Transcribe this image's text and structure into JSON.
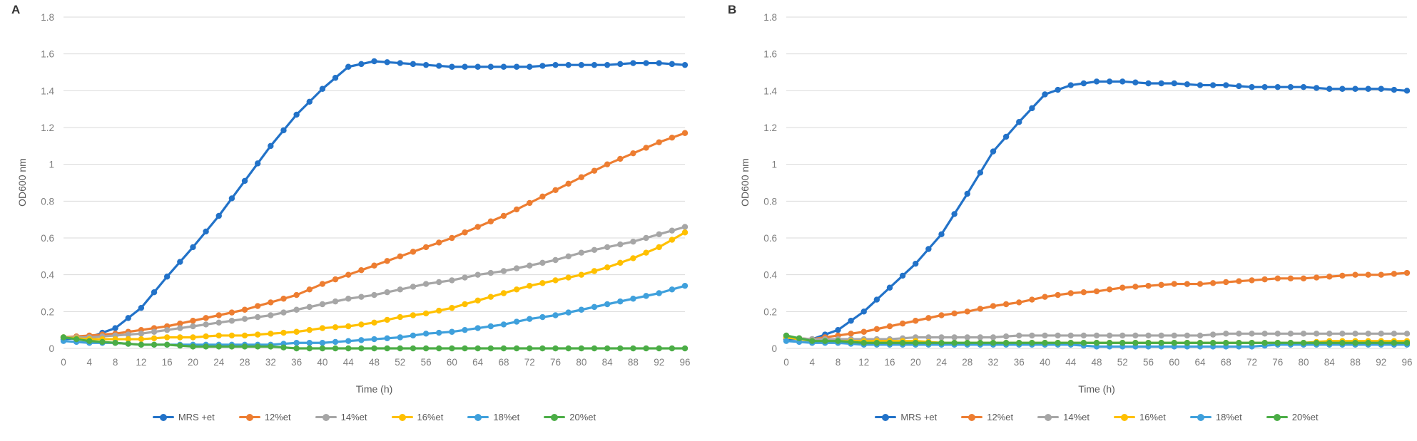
{
  "figure_bg": "#ffffff",
  "grid_color": "#d9d9d9",
  "tick_color": "#7f7f7f",
  "chart_data": [
    {
      "panel_label": "A",
      "type": "line",
      "title": "",
      "xlabel": "Time (h)",
      "ylabel": "OD600 nm",
      "ylim": [
        0,
        1.8
      ],
      "ytick_step": 0.2,
      "ytick_labels": [
        "0",
        "0.2",
        "0.4",
        "0.6",
        "0.8",
        "1",
        "1.2",
        "1.4",
        "1.6",
        "1.8"
      ],
      "grid": "horizontal",
      "legend_position": "bottom",
      "x": [
        0,
        4,
        8,
        12,
        16,
        20,
        24,
        28,
        32,
        36,
        40,
        44,
        48,
        52,
        56,
        60,
        64,
        68,
        72,
        76,
        80,
        84,
        88,
        92,
        96
      ],
      "series": [
        {
          "name": "MRS +et",
          "color": "#2272c8",
          "values": [
            0.05,
            0.06,
            0.11,
            0.22,
            0.39,
            0.55,
            0.72,
            0.91,
            1.1,
            1.27,
            1.41,
            1.53,
            1.56,
            1.55,
            1.54,
            1.53,
            1.53,
            1.53,
            1.53,
            1.54,
            1.54,
            1.54,
            1.55,
            1.55,
            1.54
          ]
        },
        {
          "name": "12%et",
          "color": "#ed7d31",
          "values": [
            0.06,
            0.07,
            0.08,
            0.1,
            0.12,
            0.15,
            0.18,
            0.21,
            0.25,
            0.29,
            0.35,
            0.4,
            0.45,
            0.5,
            0.55,
            0.6,
            0.66,
            0.72,
            0.79,
            0.86,
            0.93,
            1.0,
            1.06,
            1.12,
            1.17
          ]
        },
        {
          "name": "14%et",
          "color": "#a6a6a6",
          "values": [
            0.06,
            0.06,
            0.07,
            0.08,
            0.1,
            0.12,
            0.14,
            0.16,
            0.18,
            0.21,
            0.24,
            0.27,
            0.29,
            0.32,
            0.35,
            0.37,
            0.4,
            0.42,
            0.45,
            0.48,
            0.52,
            0.55,
            0.58,
            0.62,
            0.66
          ]
        },
        {
          "name": "16%et",
          "color": "#ffc000",
          "values": [
            0.06,
            0.05,
            0.05,
            0.05,
            0.06,
            0.06,
            0.07,
            0.07,
            0.08,
            0.09,
            0.11,
            0.12,
            0.14,
            0.17,
            0.19,
            0.22,
            0.26,
            0.3,
            0.34,
            0.37,
            0.4,
            0.44,
            0.49,
            0.55,
            0.63
          ]
        },
        {
          "name": "18%et",
          "color": "#3fa0dc",
          "values": [
            0.04,
            0.03,
            0.03,
            0.02,
            0.02,
            0.02,
            0.02,
            0.02,
            0.02,
            0.03,
            0.03,
            0.04,
            0.05,
            0.06,
            0.08,
            0.09,
            0.11,
            0.13,
            0.16,
            0.18,
            0.21,
            0.24,
            0.27,
            0.3,
            0.34
          ]
        },
        {
          "name": "20%et",
          "color": "#4bad46",
          "values": [
            0.06,
            0.04,
            0.03,
            0.02,
            0.02,
            0.01,
            0.01,
            0.01,
            0.01,
            0.0,
            0.0,
            0.0,
            0.0,
            0.0,
            0.0,
            0.0,
            0.0,
            0.0,
            0.0,
            0.0,
            0.0,
            0.0,
            0.0,
            0.0,
            0.0
          ]
        }
      ]
    },
    {
      "panel_label": "B",
      "type": "line",
      "title": "",
      "xlabel": "Time (h)",
      "ylabel": "OD600 nm",
      "ylim": [
        0,
        1.8
      ],
      "ytick_step": 0.2,
      "ytick_labels": [
        "0",
        "0.2",
        "0.4",
        "0.6",
        "0.8",
        "1",
        "1.2",
        "1.4",
        "1.6",
        "1.8"
      ],
      "grid": "horizontal",
      "legend_position": "bottom",
      "x": [
        0,
        4,
        8,
        12,
        16,
        20,
        24,
        28,
        32,
        36,
        40,
        44,
        48,
        52,
        56,
        60,
        64,
        68,
        72,
        76,
        80,
        84,
        88,
        92,
        96
      ],
      "series": [
        {
          "name": "MRS +et",
          "color": "#2272c8",
          "values": [
            0.05,
            0.05,
            0.1,
            0.2,
            0.33,
            0.46,
            0.62,
            0.84,
            1.07,
            1.23,
            1.38,
            1.43,
            1.45,
            1.45,
            1.44,
            1.44,
            1.43,
            1.43,
            1.42,
            1.42,
            1.42,
            1.41,
            1.41,
            1.41,
            1.4
          ]
        },
        {
          "name": "12%et",
          "color": "#ed7d31",
          "values": [
            0.06,
            0.05,
            0.07,
            0.09,
            0.12,
            0.15,
            0.18,
            0.2,
            0.23,
            0.25,
            0.28,
            0.3,
            0.31,
            0.33,
            0.34,
            0.35,
            0.35,
            0.36,
            0.37,
            0.38,
            0.38,
            0.39,
            0.4,
            0.4,
            0.41
          ]
        },
        {
          "name": "14%et",
          "color": "#a6a6a6",
          "values": [
            0.06,
            0.05,
            0.05,
            0.05,
            0.05,
            0.06,
            0.06,
            0.06,
            0.06,
            0.07,
            0.07,
            0.07,
            0.07,
            0.07,
            0.07,
            0.07,
            0.07,
            0.08,
            0.08,
            0.08,
            0.08,
            0.08,
            0.08,
            0.08,
            0.08
          ]
        },
        {
          "name": "16%et",
          "color": "#ffc000",
          "values": [
            0.06,
            0.04,
            0.04,
            0.04,
            0.04,
            0.04,
            0.03,
            0.03,
            0.03,
            0.03,
            0.03,
            0.03,
            0.03,
            0.03,
            0.03,
            0.03,
            0.03,
            0.03,
            0.03,
            0.03,
            0.03,
            0.04,
            0.04,
            0.04,
            0.04
          ]
        },
        {
          "name": "18%et",
          "color": "#3fa0dc",
          "values": [
            0.04,
            0.03,
            0.03,
            0.02,
            0.02,
            0.02,
            0.02,
            0.02,
            0.02,
            0.02,
            0.02,
            0.02,
            0.01,
            0.01,
            0.01,
            0.01,
            0.01,
            0.01,
            0.01,
            0.02,
            0.02,
            0.02,
            0.02,
            0.02,
            0.02
          ]
        },
        {
          "name": "20%et",
          "color": "#4bad46",
          "values": [
            0.07,
            0.04,
            0.04,
            0.03,
            0.03,
            0.03,
            0.03,
            0.03,
            0.03,
            0.03,
            0.03,
            0.03,
            0.03,
            0.03,
            0.03,
            0.03,
            0.03,
            0.03,
            0.03,
            0.03,
            0.03,
            0.03,
            0.03,
            0.03,
            0.03
          ]
        }
      ]
    }
  ]
}
